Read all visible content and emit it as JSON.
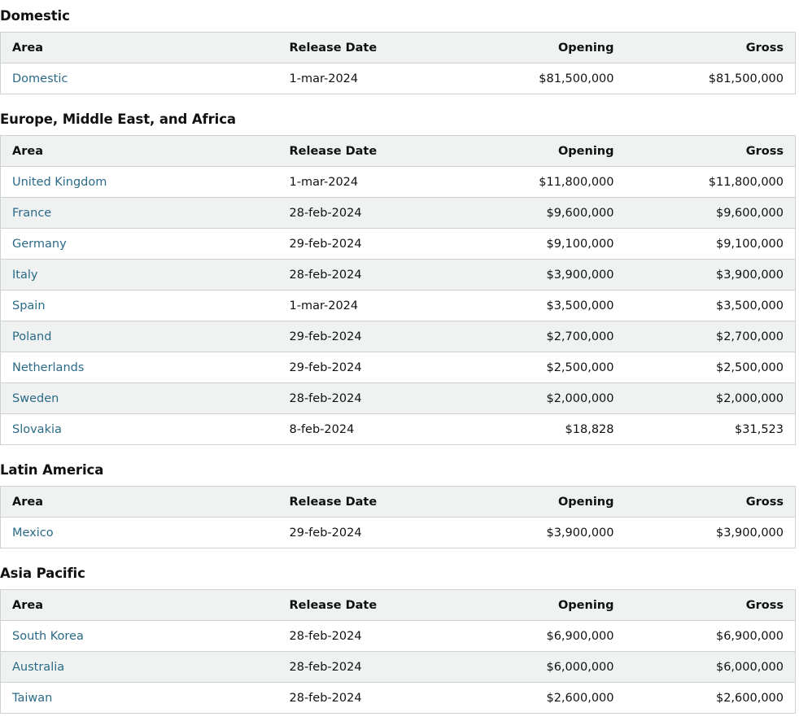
{
  "columns": {
    "area": "Area",
    "release_date": "Release Date",
    "opening": "Opening",
    "gross": "Gross"
  },
  "regions": [
    {
      "title": "Domestic",
      "rows": [
        {
          "area": "Domestic",
          "release_date": "1-mar-2024",
          "opening": "$81,500,000",
          "gross": "$81,500,000"
        }
      ]
    },
    {
      "title": "Europe, Middle East, and Africa",
      "rows": [
        {
          "area": "United Kingdom",
          "release_date": "1-mar-2024",
          "opening": "$11,800,000",
          "gross": "$11,800,000"
        },
        {
          "area": "France",
          "release_date": "28-feb-2024",
          "opening": "$9,600,000",
          "gross": "$9,600,000"
        },
        {
          "area": "Germany",
          "release_date": "29-feb-2024",
          "opening": "$9,100,000",
          "gross": "$9,100,000"
        },
        {
          "area": "Italy",
          "release_date": "28-feb-2024",
          "opening": "$3,900,000",
          "gross": "$3,900,000"
        },
        {
          "area": "Spain",
          "release_date": "1-mar-2024",
          "opening": "$3,500,000",
          "gross": "$3,500,000"
        },
        {
          "area": "Poland",
          "release_date": "29-feb-2024",
          "opening": "$2,700,000",
          "gross": "$2,700,000"
        },
        {
          "area": "Netherlands",
          "release_date": "29-feb-2024",
          "opening": "$2,500,000",
          "gross": "$2,500,000"
        },
        {
          "area": "Sweden",
          "release_date": "28-feb-2024",
          "opening": "$2,000,000",
          "gross": "$2,000,000"
        },
        {
          "area": "Slovakia",
          "release_date": "8-feb-2024",
          "opening": "$18,828",
          "gross": "$31,523"
        }
      ]
    },
    {
      "title": "Latin America",
      "rows": [
        {
          "area": "Mexico",
          "release_date": "29-feb-2024",
          "opening": "$3,900,000",
          "gross": "$3,900,000"
        }
      ]
    },
    {
      "title": "Asia Pacific",
      "rows": [
        {
          "area": "South Korea",
          "release_date": "28-feb-2024",
          "opening": "$6,900,000",
          "gross": "$6,900,000"
        },
        {
          "area": "Australia",
          "release_date": "28-feb-2024",
          "opening": "$6,000,000",
          "gross": "$6,000,000"
        },
        {
          "area": "Taiwan",
          "release_date": "28-feb-2024",
          "opening": "$2,600,000",
          "gross": "$2,600,000"
        }
      ]
    }
  ],
  "colors": {
    "link": "#2a6a86",
    "header_bg": "#f0f2f2",
    "border": "#cfd2d2"
  }
}
